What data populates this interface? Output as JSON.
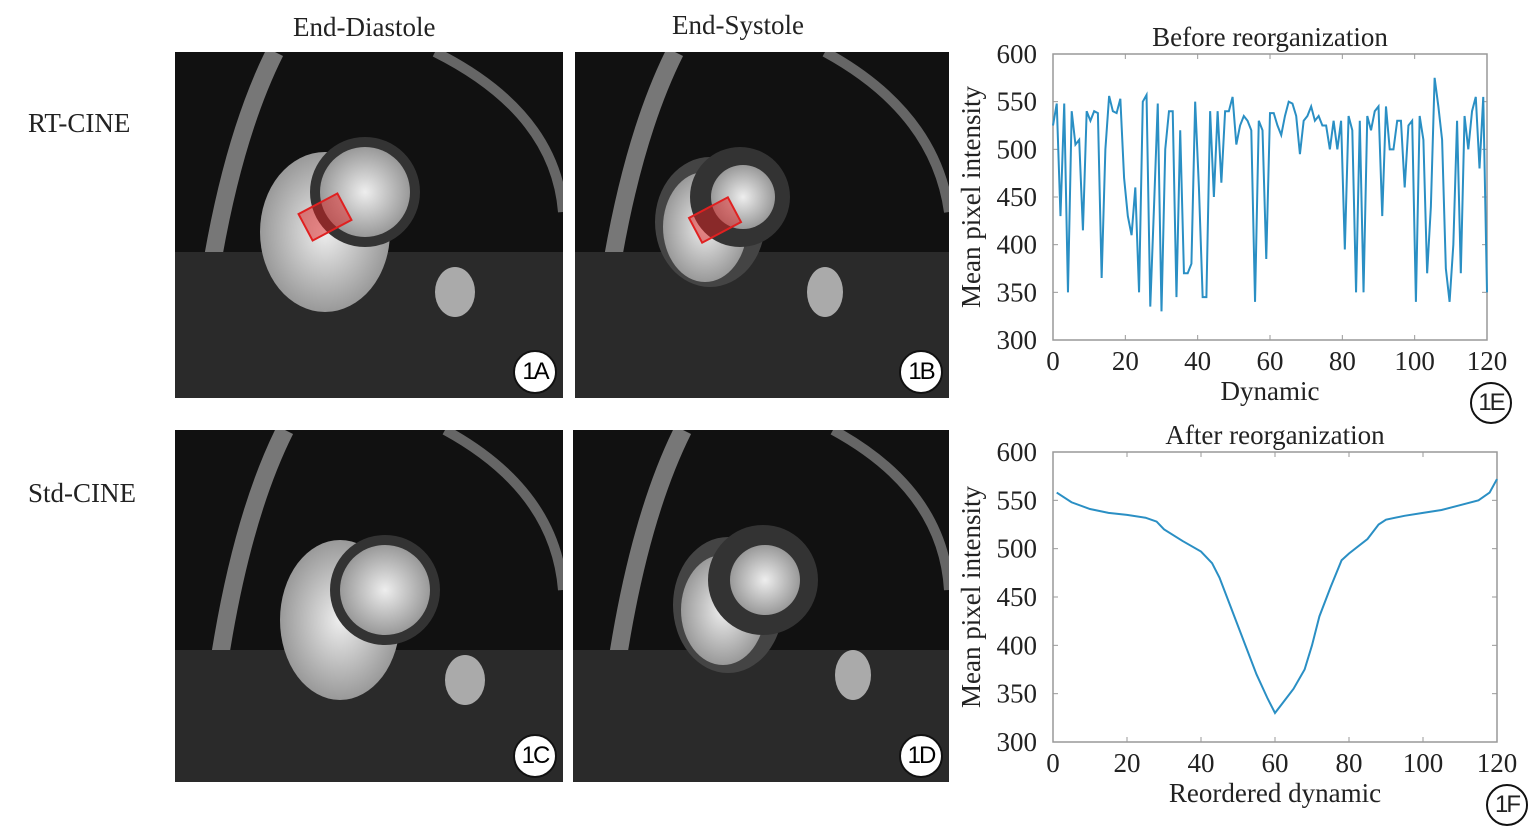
{
  "columns": [
    "End-Diastole",
    "End-Systole"
  ],
  "rows": [
    "RT-CINE",
    "Std-CINE"
  ],
  "panels": [
    "1A",
    "1B",
    "1C",
    "1D"
  ],
  "chart_labels": [
    "1E",
    "1F"
  ],
  "colors": {
    "line": "#2a8fc4",
    "roi": "#e02020"
  },
  "chart_data": [
    {
      "type": "line",
      "title": "Before reorganization",
      "xlabel": "Dynamic",
      "ylabel": "Mean pixel intensity",
      "xlim": [
        0,
        120
      ],
      "ylim": [
        300,
        600
      ],
      "xticks": [
        0,
        20,
        40,
        60,
        80,
        100,
        120
      ],
      "yticks": [
        300,
        350,
        400,
        450,
        500,
        550,
        600
      ],
      "y": [
        525,
        548,
        430,
        548,
        350,
        540,
        505,
        510,
        415,
        540,
        530,
        540,
        538,
        365,
        500,
        556,
        540,
        538,
        553,
        470,
        430,
        410,
        460,
        350,
        550,
        557,
        335,
        440,
        548,
        330,
        500,
        540,
        540,
        345,
        520,
        370,
        370,
        380,
        550,
        460,
        345,
        345,
        540,
        450,
        540,
        465,
        540,
        540,
        555,
        505,
        525,
        535,
        530,
        520,
        340,
        530,
        520,
        385,
        538,
        538,
        525,
        515,
        535,
        550,
        548,
        535,
        495,
        530,
        535,
        545,
        530,
        535,
        525,
        525,
        500,
        530,
        500,
        530,
        395,
        535,
        520,
        350,
        530,
        350,
        535,
        520,
        540,
        545,
        430,
        545,
        500,
        500,
        530,
        530,
        460,
        525,
        530,
        340,
        535,
        510,
        370,
        440,
        575,
        545,
        510,
        375,
        340,
        400,
        530,
        370,
        535,
        500,
        540,
        555,
        480,
        555,
        350
      ]
    },
    {
      "type": "line",
      "title": "After reorganization",
      "xlabel": "Reordered dynamic",
      "ylabel": "Mean pixel intensity",
      "xlim": [
        0,
        120
      ],
      "ylim": [
        300,
        600
      ],
      "xticks": [
        0,
        20,
        40,
        60,
        80,
        100,
        120
      ],
      "yticks": [
        300,
        350,
        400,
        450,
        500,
        550,
        600
      ],
      "x": [
        1,
        5,
        10,
        15,
        20,
        25,
        28,
        30,
        35,
        40,
        43,
        45,
        48,
        50,
        52,
        55,
        58,
        60,
        62,
        65,
        68,
        70,
        72,
        75,
        78,
        80,
        85,
        88,
        90,
        95,
        100,
        105,
        110,
        115,
        118,
        120
      ],
      "y": [
        558,
        548,
        541,
        537,
        535,
        532,
        528,
        520,
        508,
        497,
        485,
        470,
        440,
        420,
        400,
        370,
        345,
        330,
        340,
        355,
        375,
        400,
        430,
        460,
        488,
        495,
        510,
        525,
        530,
        534,
        537,
        540,
        545,
        550,
        558,
        572
      ]
    }
  ]
}
